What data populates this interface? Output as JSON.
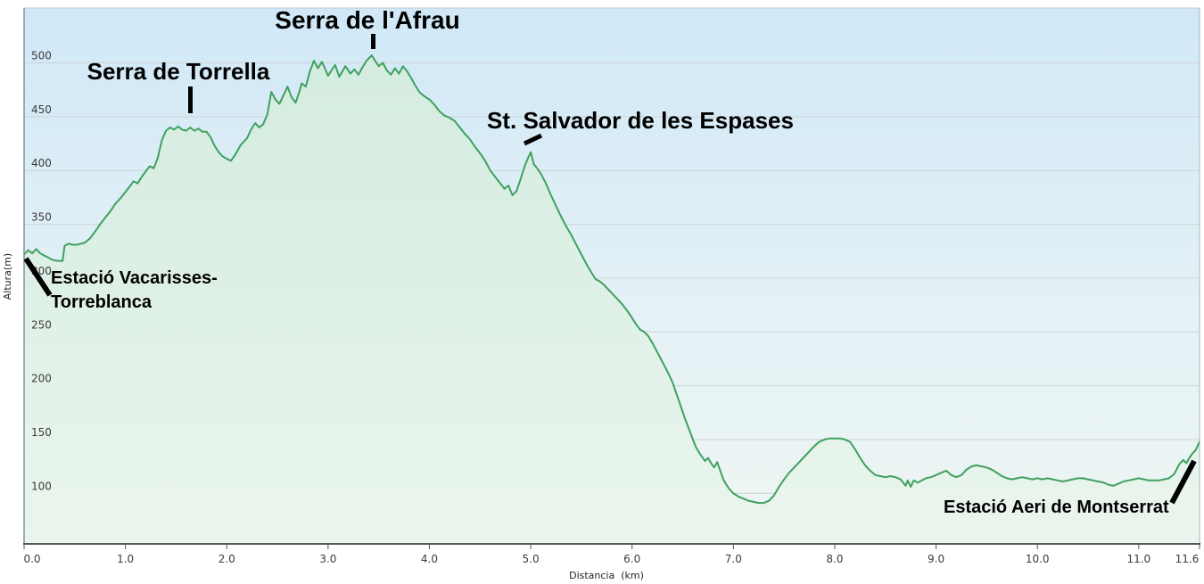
{
  "chart_data": {
    "type": "area",
    "title": "",
    "xlabel": "Distancia  (km)",
    "ylabel": "Altura(m)",
    "xlim": [
      0,
      11.6
    ],
    "ylim": [
      53,
      551
    ],
    "grid": true,
    "legend": "none",
    "colors": {
      "line": "#3fa060",
      "area_top": "#d4ecdf",
      "area_bottom": "#eaf5ed",
      "bg_top": "#d0e8f7",
      "bg_mid": "#e4f1f6",
      "bg_bottom": "#eef6f2",
      "gridline": "#cdd4d4",
      "border_left": "#7d95a3",
      "border_top": "#c2cdd2",
      "border_right": "#aab6bc",
      "border_bottom": "#4e5a5e",
      "tick": "#555555",
      "annotation": "#000000"
    },
    "y_ticks": [
      100,
      150,
      200,
      250,
      300,
      350,
      400,
      450,
      500
    ],
    "x_ticks": [
      {
        "value": 0,
        "label": "0.0"
      },
      {
        "value": 1,
        "label": "1.0"
      },
      {
        "value": 2,
        "label": "2.0"
      },
      {
        "value": 3,
        "label": "3.0"
      },
      {
        "value": 4,
        "label": "4.0"
      },
      {
        "value": 5,
        "label": "5.0"
      },
      {
        "value": 6,
        "label": "6.0"
      },
      {
        "value": 7,
        "label": "7.0"
      },
      {
        "value": 8,
        "label": "8.0"
      },
      {
        "value": 9,
        "label": "9.0"
      },
      {
        "value": 10,
        "label": "10.0"
      },
      {
        "value": 11,
        "label": "11.0"
      },
      {
        "value": 11.6,
        "label": "11.6"
      }
    ],
    "annotations": [
      {
        "id": "serra-de-lafrau",
        "text": "Serra de l'Afrau",
        "x_km": 3.43,
        "y_m": 507
      },
      {
        "id": "serra-de-torrella",
        "text": "Serra de Torrella",
        "x_km": 1.6,
        "y_m": 440
      },
      {
        "id": "st-salvador-de-les-espases",
        "text": "St. Salvador de les Espases",
        "x_km": 5.0,
        "y_m": 417
      },
      {
        "id": "estacio-vacarisses-torreblanca",
        "text": "Estació Vacarisses-",
        "text2": "Torreblanca",
        "x_km": 0.0,
        "y_m": 322
      },
      {
        "id": "estacio-aeri-de-montserrat",
        "text": "Estació Aeri de Montserrat",
        "x_km": 11.6,
        "y_m": 148
      }
    ],
    "series_name": "elevation-profile",
    "points": [
      [
        0,
        322
      ],
      [
        0.04,
        326
      ],
      [
        0.08,
        323
      ],
      [
        0.12,
        327
      ],
      [
        0.16,
        323
      ],
      [
        0.2,
        321
      ],
      [
        0.24,
        319
      ],
      [
        0.28,
        317
      ],
      [
        0.33,
        316
      ],
      [
        0.38,
        316
      ],
      [
        0.4,
        330
      ],
      [
        0.44,
        332
      ],
      [
        0.48,
        331
      ],
      [
        0.52,
        331
      ],
      [
        0.56,
        332
      ],
      [
        0.6,
        333
      ],
      [
        0.65,
        337
      ],
      [
        0.7,
        343
      ],
      [
        0.75,
        350
      ],
      [
        0.8,
        356
      ],
      [
        0.85,
        362
      ],
      [
        0.9,
        369
      ],
      [
        0.95,
        374
      ],
      [
        1,
        380
      ],
      [
        1.05,
        386
      ],
      [
        1.08,
        390
      ],
      [
        1.12,
        388
      ],
      [
        1.16,
        394
      ],
      [
        1.2,
        399
      ],
      [
        1.24,
        404
      ],
      [
        1.28,
        402
      ],
      [
        1.32,
        412
      ],
      [
        1.36,
        428
      ],
      [
        1.4,
        437
      ],
      [
        1.44,
        440
      ],
      [
        1.48,
        438
      ],
      [
        1.52,
        441
      ],
      [
        1.56,
        438
      ],
      [
        1.6,
        437
      ],
      [
        1.64,
        440
      ],
      [
        1.68,
        437
      ],
      [
        1.72,
        439
      ],
      [
        1.76,
        436
      ],
      [
        1.8,
        436
      ],
      [
        1.84,
        431
      ],
      [
        1.88,
        423
      ],
      [
        1.92,
        417
      ],
      [
        1.96,
        413
      ],
      [
        2,
        411
      ],
      [
        2.04,
        409
      ],
      [
        2.08,
        414
      ],
      [
        2.14,
        424
      ],
      [
        2.2,
        430
      ],
      [
        2.24,
        438
      ],
      [
        2.28,
        444
      ],
      [
        2.32,
        440
      ],
      [
        2.36,
        443
      ],
      [
        2.4,
        452
      ],
      [
        2.44,
        473
      ],
      [
        2.48,
        466
      ],
      [
        2.52,
        462
      ],
      [
        2.56,
        470
      ],
      [
        2.6,
        478
      ],
      [
        2.64,
        468
      ],
      [
        2.68,
        463
      ],
      [
        2.72,
        474
      ],
      [
        2.74,
        481
      ],
      [
        2.78,
        478
      ],
      [
        2.82,
        492
      ],
      [
        2.86,
        502
      ],
      [
        2.9,
        495
      ],
      [
        2.94,
        501
      ],
      [
        3,
        488
      ],
      [
        3.04,
        494
      ],
      [
        3.07,
        498
      ],
      [
        3.11,
        487
      ],
      [
        3.14,
        492
      ],
      [
        3.17,
        497
      ],
      [
        3.22,
        490
      ],
      [
        3.26,
        494
      ],
      [
        3.3,
        489
      ],
      [
        3.34,
        496
      ],
      [
        3.38,
        502
      ],
      [
        3.43,
        507
      ],
      [
        3.47,
        501
      ],
      [
        3.5,
        497
      ],
      [
        3.54,
        500
      ],
      [
        3.58,
        493
      ],
      [
        3.62,
        489
      ],
      [
        3.66,
        495
      ],
      [
        3.7,
        490
      ],
      [
        3.74,
        497
      ],
      [
        3.78,
        492
      ],
      [
        3.82,
        486
      ],
      [
        3.86,
        479
      ],
      [
        3.9,
        473
      ],
      [
        3.95,
        469
      ],
      [
        4,
        466
      ],
      [
        4.05,
        461
      ],
      [
        4.1,
        455
      ],
      [
        4.15,
        451
      ],
      [
        4.2,
        449
      ],
      [
        4.25,
        446
      ],
      [
        4.3,
        440
      ],
      [
        4.35,
        434
      ],
      [
        4.4,
        429
      ],
      [
        4.45,
        422
      ],
      [
        4.5,
        416
      ],
      [
        4.55,
        409
      ],
      [
        4.6,
        400
      ],
      [
        4.65,
        394
      ],
      [
        4.7,
        388
      ],
      [
        4.74,
        383
      ],
      [
        4.78,
        386
      ],
      [
        4.82,
        377
      ],
      [
        4.86,
        381
      ],
      [
        4.9,
        392
      ],
      [
        4.94,
        404
      ],
      [
        4.98,
        413
      ],
      [
        5,
        417
      ],
      [
        5.03,
        406
      ],
      [
        5.07,
        401
      ],
      [
        5.1,
        397
      ],
      [
        5.15,
        388
      ],
      [
        5.2,
        377
      ],
      [
        5.25,
        367
      ],
      [
        5.3,
        357
      ],
      [
        5.35,
        348
      ],
      [
        5.4,
        340
      ],
      [
        5.45,
        331
      ],
      [
        5.5,
        322
      ],
      [
        5.55,
        313
      ],
      [
        5.6,
        305
      ],
      [
        5.64,
        299
      ],
      [
        5.68,
        297
      ],
      [
        5.72,
        294
      ],
      [
        5.76,
        290
      ],
      [
        5.8,
        286
      ],
      [
        5.85,
        281
      ],
      [
        5.9,
        276
      ],
      [
        5.95,
        270
      ],
      [
        6,
        263
      ],
      [
        6.04,
        257
      ],
      [
        6.08,
        252
      ],
      [
        6.12,
        250
      ],
      [
        6.16,
        246
      ],
      [
        6.2,
        240
      ],
      [
        6.25,
        231
      ],
      [
        6.3,
        222
      ],
      [
        6.35,
        213
      ],
      [
        6.4,
        203
      ],
      [
        6.44,
        192
      ],
      [
        6.48,
        181
      ],
      [
        6.52,
        170
      ],
      [
        6.56,
        160
      ],
      [
        6.6,
        150
      ],
      [
        6.63,
        143
      ],
      [
        6.66,
        138
      ],
      [
        6.69,
        134
      ],
      [
        6.72,
        130
      ],
      [
        6.75,
        133
      ],
      [
        6.78,
        128
      ],
      [
        6.81,
        124
      ],
      [
        6.84,
        129
      ],
      [
        6.87,
        121
      ],
      [
        6.9,
        113
      ],
      [
        6.93,
        108
      ],
      [
        6.96,
        104
      ],
      [
        7,
        100
      ],
      [
        7.05,
        97
      ],
      [
        7.1,
        95
      ],
      [
        7.15,
        93
      ],
      [
        7.2,
        92
      ],
      [
        7.25,
        91
      ],
      [
        7.3,
        91
      ],
      [
        7.35,
        93
      ],
      [
        7.4,
        98
      ],
      [
        7.45,
        106
      ],
      [
        7.5,
        113
      ],
      [
        7.55,
        119
      ],
      [
        7.6,
        124
      ],
      [
        7.65,
        129
      ],
      [
        7.7,
        134
      ],
      [
        7.75,
        139
      ],
      [
        7.8,
        144
      ],
      [
        7.85,
        148
      ],
      [
        7.9,
        150
      ],
      [
        7.95,
        151
      ],
      [
        8,
        151
      ],
      [
        8.05,
        151
      ],
      [
        8.1,
        150
      ],
      [
        8.15,
        148
      ],
      [
        8.2,
        141
      ],
      [
        8.25,
        133
      ],
      [
        8.3,
        126
      ],
      [
        8.35,
        121
      ],
      [
        8.4,
        117
      ],
      [
        8.45,
        116
      ],
      [
        8.5,
        115
      ],
      [
        8.55,
        116
      ],
      [
        8.6,
        115
      ],
      [
        8.65,
        113
      ],
      [
        8.7,
        107
      ],
      [
        8.72,
        112
      ],
      [
        8.75,
        106
      ],
      [
        8.78,
        112
      ],
      [
        8.82,
        110
      ],
      [
        8.86,
        112
      ],
      [
        8.9,
        114
      ],
      [
        8.95,
        115
      ],
      [
        9,
        117
      ],
      [
        9.05,
        119
      ],
      [
        9.1,
        121
      ],
      [
        9.15,
        117
      ],
      [
        9.2,
        115
      ],
      [
        9.25,
        117
      ],
      [
        9.3,
        122
      ],
      [
        9.35,
        125
      ],
      [
        9.4,
        126
      ],
      [
        9.45,
        125
      ],
      [
        9.5,
        124
      ],
      [
        9.55,
        122
      ],
      [
        9.6,
        119
      ],
      [
        9.65,
        116
      ],
      [
        9.7,
        114
      ],
      [
        9.75,
        113
      ],
      [
        9.8,
        114
      ],
      [
        9.85,
        115
      ],
      [
        9.9,
        114
      ],
      [
        9.95,
        113
      ],
      [
        10,
        114
      ],
      [
        10.05,
        113
      ],
      [
        10.1,
        114
      ],
      [
        10.15,
        113
      ],
      [
        10.2,
        112
      ],
      [
        10.25,
        111
      ],
      [
        10.3,
        112
      ],
      [
        10.35,
        113
      ],
      [
        10.4,
        114
      ],
      [
        10.45,
        114
      ],
      [
        10.5,
        113
      ],
      [
        10.55,
        112
      ],
      [
        10.6,
        111
      ],
      [
        10.65,
        110
      ],
      [
        10.7,
        108
      ],
      [
        10.75,
        107
      ],
      [
        10.8,
        109
      ],
      [
        10.85,
        111
      ],
      [
        10.9,
        112
      ],
      [
        10.95,
        113
      ],
      [
        11,
        114
      ],
      [
        11.05,
        113
      ],
      [
        11.1,
        112
      ],
      [
        11.15,
        112
      ],
      [
        11.2,
        112
      ],
      [
        11.25,
        113
      ],
      [
        11.3,
        114
      ],
      [
        11.35,
        118
      ],
      [
        11.4,
        127
      ],
      [
        11.44,
        131
      ],
      [
        11.47,
        128
      ],
      [
        11.5,
        133
      ],
      [
        11.53,
        137
      ],
      [
        11.56,
        140
      ],
      [
        11.6,
        148
      ]
    ]
  }
}
